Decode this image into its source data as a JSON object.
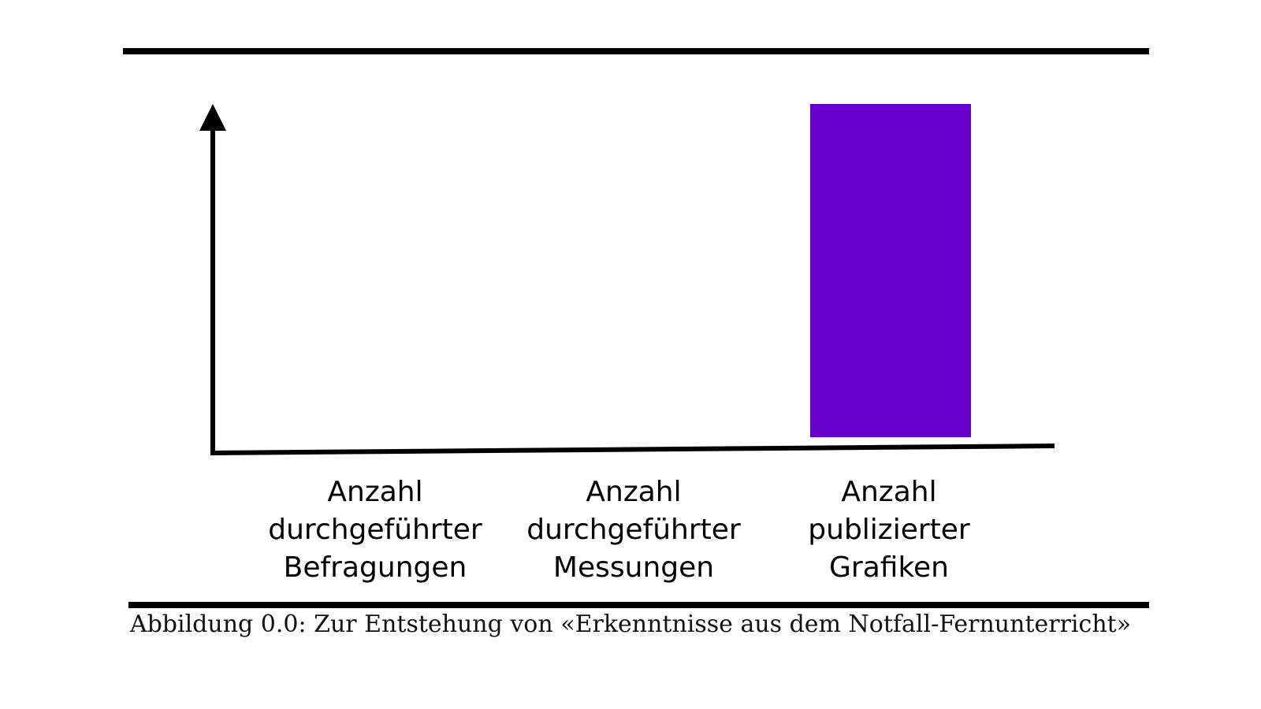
{
  "caption": "Abbildung 0.0: Zur Entstehung von «Erkenntnisse aus dem Notfall-Fernunterricht»",
  "chart_data": {
    "type": "bar",
    "categories": [
      [
        "Anzahl",
        "durchgeführter",
        "Befragungen"
      ],
      [
        "Anzahl",
        "durchgeführter",
        "Messungen"
      ],
      [
        "Anzahl",
        "publizierter",
        "Grafiken"
      ]
    ],
    "values": [
      0,
      0,
      1
    ],
    "ylim": [
      0,
      1
    ],
    "y_ticks": false,
    "grid": false,
    "legend": "none",
    "bar_color": "#6600cc",
    "axis_color": "#000000"
  }
}
